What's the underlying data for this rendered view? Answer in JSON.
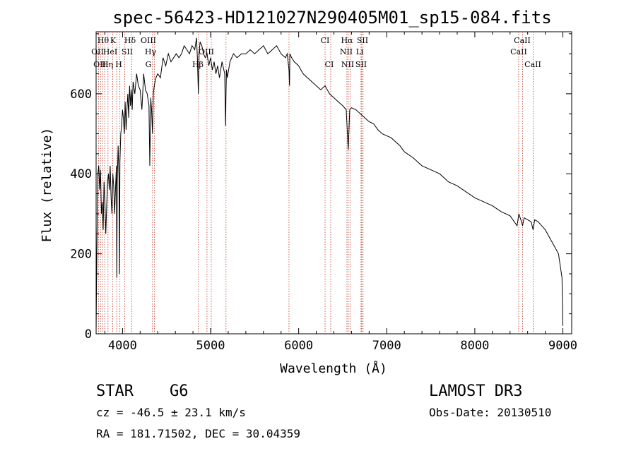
{
  "chart_data": {
    "type": "line",
    "title": "spec-56423-HD121027N290405M01_sp15-084.fits",
    "xlabel": "Wavelength (Å)",
    "ylabel": "Flux (relative)",
    "xlim": [
      3700,
      9100
    ],
    "ylim": [
      0,
      755
    ],
    "xticks": [
      4000,
      5000,
      6000,
      7000,
      8000,
      9000
    ],
    "yticks": [
      0,
      200,
      400,
      600
    ],
    "series": [
      {
        "name": "flux",
        "x": [
          3700,
          3705,
          3710,
          3715,
          3720,
          3730,
          3740,
          3750,
          3760,
          3770,
          3780,
          3790,
          3800,
          3810,
          3820,
          3830,
          3840,
          3850,
          3860,
          3870,
          3880,
          3890,
          3900,
          3910,
          3920,
          3930,
          3935,
          3940,
          3950,
          3960,
          3965,
          3970,
          3980,
          3990,
          4000,
          4010,
          4020,
          4030,
          4040,
          4050,
          4060,
          4070,
          4080,
          4090,
          4100,
          4110,
          4120,
          4140,
          4160,
          4180,
          4200,
          4220,
          4240,
          4260,
          4280,
          4300,
          4310,
          4320,
          4330,
          4340,
          4350,
          4360,
          4380,
          4400,
          4430,
          4460,
          4490,
          4520,
          4550,
          4580,
          4610,
          4640,
          4670,
          4700,
          4730,
          4760,
          4790,
          4820,
          4840,
          4850,
          4861,
          4870,
          4880,
          4900,
          4920,
          4940,
          4960,
          4980,
          5000,
          5020,
          5040,
          5060,
          5080,
          5100,
          5130,
          5160,
          5170,
          5175,
          5180,
          5190,
          5220,
          5260,
          5300,
          5350,
          5400,
          5450,
          5500,
          5550,
          5600,
          5650,
          5700,
          5750,
          5800,
          5850,
          5870,
          5890,
          5896,
          5900,
          5920,
          5950,
          6000,
          6050,
          6100,
          6150,
          6200,
          6250,
          6300,
          6350,
          6400,
          6450,
          6500,
          6540,
          6563,
          6580,
          6600,
          6650,
          6700,
          6750,
          6800,
          6850,
          6900,
          6950,
          7000,
          7050,
          7100,
          7150,
          7200,
          7300,
          7400,
          7500,
          7600,
          7700,
          7800,
          7900,
          8000,
          8100,
          8200,
          8300,
          8400,
          8480,
          8500,
          8530,
          8542,
          8560,
          8600,
          8640,
          8662,
          8680,
          8720,
          8760,
          8800,
          8850,
          8900,
          8950,
          8990,
          9000
        ],
        "values": [
          0,
          120,
          230,
          330,
          400,
          420,
          360,
          410,
          300,
          330,
          260,
          380,
          330,
          250,
          320,
          380,
          400,
          360,
          420,
          340,
          300,
          400,
          370,
          300,
          360,
          420,
          140,
          380,
          470,
          390,
          150,
          430,
          500,
          520,
          560,
          540,
          500,
          580,
          510,
          560,
          600,
          540,
          620,
          570,
          610,
          560,
          630,
          600,
          650,
          620,
          610,
          560,
          650,
          610,
          600,
          570,
          420,
          590,
          560,
          500,
          600,
          620,
          640,
          650,
          640,
          690,
          670,
          700,
          680,
          690,
          700,
          690,
          700,
          720,
          710,
          700,
          720,
          710,
          740,
          690,
          600,
          700,
          730,
          720,
          700,
          690,
          700,
          670,
          690,
          660,
          680,
          650,
          670,
          640,
          680,
          650,
          520,
          600,
          660,
          640,
          680,
          700,
          690,
          700,
          700,
          710,
          700,
          710,
          720,
          700,
          710,
          720,
          700,
          690,
          700,
          660,
          620,
          700,
          690,
          680,
          670,
          650,
          640,
          630,
          620,
          610,
          620,
          600,
          590,
          580,
          570,
          560,
          460,
          560,
          565,
          560,
          550,
          540,
          530,
          525,
          510,
          500,
          495,
          490,
          480,
          470,
          455,
          440,
          420,
          410,
          400,
          380,
          370,
          355,
          340,
          330,
          320,
          305,
          295,
          270,
          300,
          280,
          270,
          290,
          285,
          280,
          260,
          285,
          280,
          270,
          260,
          240,
          220,
          200,
          140,
          20
        ]
      }
    ],
    "line_labels": {
      "row1": [
        "Hθ",
        "K",
        "Hδ",
        "OIII",
        "CI",
        "Hα",
        "SII",
        "CaII"
      ],
      "row2": [
        "OII",
        "HeI",
        "SII",
        "Hγ",
        "OIII",
        "NII",
        "Li",
        "CaII"
      ],
      "row3": [
        "OII",
        "Hη",
        "H",
        "G",
        "Hβ",
        "CI",
        "NII",
        "SII",
        "CaII"
      ]
    }
  },
  "info": {
    "class": "STAR",
    "subclass": "G6",
    "cz": "cz = -46.5 ± 23.1 km/s",
    "radec": "RA = 181.71502, DEC =  30.04359",
    "survey": "LAMOST DR3",
    "obsdate": "Obs-Date: 20130510"
  }
}
